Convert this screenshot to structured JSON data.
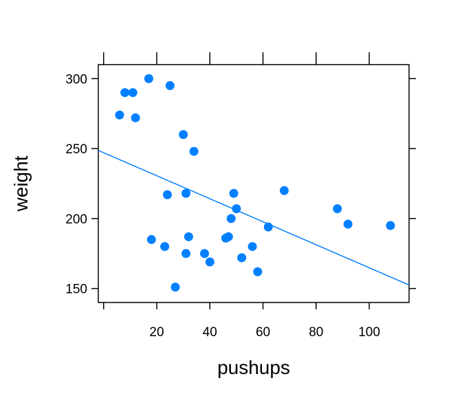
{
  "chart_data": {
    "type": "scatter",
    "title": "",
    "xlabel": "pushups",
    "ylabel": "weight",
    "xlim": [
      -2,
      115
    ],
    "ylim": [
      140,
      310
    ],
    "xticks": [
      20,
      40,
      60,
      80,
      100
    ],
    "yticks": [
      150,
      200,
      250,
      300
    ],
    "xtick_labels": [
      "20",
      "40",
      "60",
      "80",
      "100"
    ],
    "ytick_labels": [
      "150",
      "200",
      "250",
      "300"
    ],
    "points_color": "#0080FF",
    "line_color": "#0080FF",
    "points": [
      {
        "x": 6,
        "y": 274
      },
      {
        "x": 8,
        "y": 290
      },
      {
        "x": 11,
        "y": 290
      },
      {
        "x": 12,
        "y": 272
      },
      {
        "x": 17,
        "y": 300
      },
      {
        "x": 18,
        "y": 185
      },
      {
        "x": 23,
        "y": 180
      },
      {
        "x": 24,
        "y": 217
      },
      {
        "x": 25,
        "y": 295
      },
      {
        "x": 27,
        "y": 151
      },
      {
        "x": 30,
        "y": 260
      },
      {
        "x": 31,
        "y": 218
      },
      {
        "x": 31,
        "y": 175
      },
      {
        "x": 32,
        "y": 187
      },
      {
        "x": 34,
        "y": 248
      },
      {
        "x": 38,
        "y": 175
      },
      {
        "x": 40,
        "y": 169
      },
      {
        "x": 46,
        "y": 186
      },
      {
        "x": 47,
        "y": 187
      },
      {
        "x": 48,
        "y": 200
      },
      {
        "x": 49,
        "y": 218
      },
      {
        "x": 50,
        "y": 207
      },
      {
        "x": 52,
        "y": 172
      },
      {
        "x": 56,
        "y": 180
      },
      {
        "x": 58,
        "y": 162
      },
      {
        "x": 62,
        "y": 194
      },
      {
        "x": 68,
        "y": 220
      },
      {
        "x": 88,
        "y": 207
      },
      {
        "x": 92,
        "y": 196
      },
      {
        "x": 108,
        "y": 195
      }
    ],
    "regression_line": {
      "x": [
        -2,
        115
      ],
      "y": [
        248.7,
        152.5
      ]
    }
  }
}
